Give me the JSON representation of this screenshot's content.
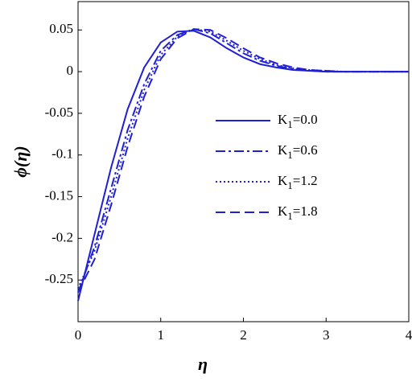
{
  "chart_data": {
    "type": "line",
    "xlabel": "η",
    "ylabel": "ϕ(η)",
    "x": [
      0,
      0.2,
      0.4,
      0.6,
      0.8,
      1.0,
      1.2,
      1.4,
      1.6,
      1.8,
      2.0,
      2.2,
      2.4,
      2.6,
      2.8,
      3.0,
      3.2,
      3.4,
      3.6,
      3.8,
      4.0
    ],
    "series": [
      {
        "name": "K1=0.0",
        "color": "#1f1fd6",
        "linestyle": "solid",
        "values": [
          -0.275,
          -0.195,
          -0.115,
          -0.045,
          0.005,
          0.035,
          0.048,
          0.049,
          0.041,
          0.028,
          0.017,
          0.009,
          0.005,
          0.002,
          0.001,
          0,
          0,
          0,
          0,
          0,
          0
        ]
      },
      {
        "name": "K1=0.6",
        "color": "#1f1fd6",
        "linestyle": "dashdot",
        "values": [
          -0.265,
          -0.21,
          -0.14,
          -0.07,
          -0.015,
          0.025,
          0.044,
          0.051,
          0.046,
          0.034,
          0.022,
          0.013,
          0.007,
          0.003,
          0.001,
          0,
          0,
          0,
          0,
          0,
          0
        ]
      },
      {
        "name": "K1=1.2",
        "color": "#1f1fd6",
        "linestyle": "dotted",
        "values": [
          -0.26,
          -0.215,
          -0.15,
          -0.08,
          -0.022,
          0.02,
          0.042,
          0.051,
          0.048,
          0.037,
          0.025,
          0.015,
          0.008,
          0.004,
          0.002,
          0.001,
          0,
          0,
          0,
          0,
          0
        ]
      },
      {
        "name": "K1=1.8",
        "color": "#1f1fd6",
        "linestyle": "dashed",
        "values": [
          -0.265,
          -0.225,
          -0.16,
          -0.09,
          -0.03,
          0.015,
          0.04,
          0.051,
          0.05,
          0.04,
          0.028,
          0.017,
          0.01,
          0.005,
          0.002,
          0.001,
          0,
          0,
          0,
          0,
          0
        ]
      }
    ],
    "xlim": [
      0,
      4
    ],
    "xticks": [
      0,
      1,
      2,
      3,
      4
    ],
    "ylim": [
      -0.3,
      0.084
    ],
    "yticks": [
      0.05,
      0,
      -0.05,
      -0.1,
      -0.15,
      -0.2,
      -0.25
    ],
    "grid": false,
    "legend": "center-right"
  }
}
